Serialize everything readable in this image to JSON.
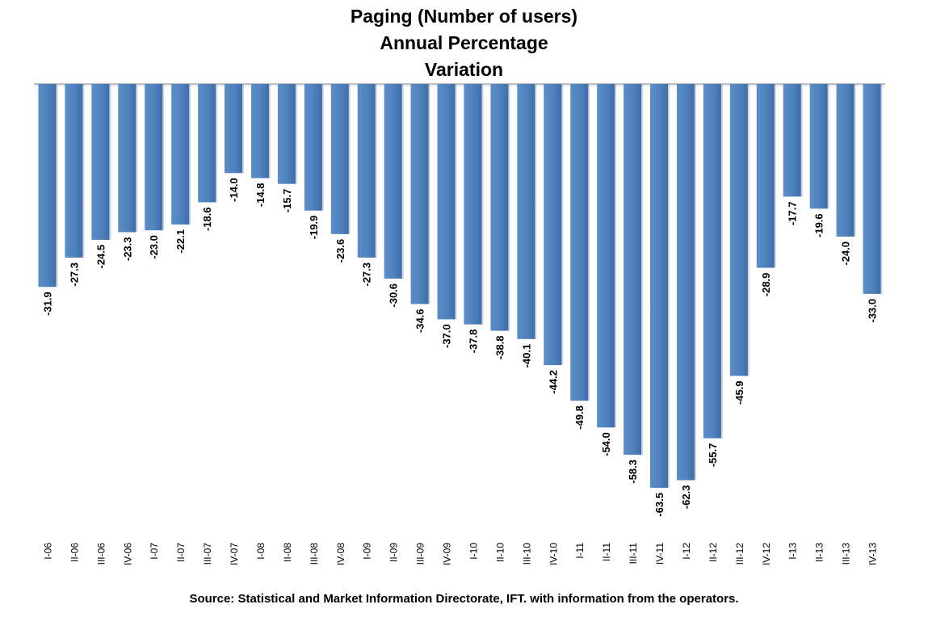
{
  "chart_data": {
    "type": "bar",
    "title_lines": [
      "Paging (Number of users)",
      "Annual Percentage",
      "Variation"
    ],
    "categories": [
      "I-06",
      "II-06",
      "III-06",
      "IV-06",
      "I-07",
      "II-07",
      "III-07",
      "IV-07",
      "I-08",
      "II-08",
      "III-08",
      "IV-08",
      "I-09",
      "II-09",
      "III-09",
      "IV-09",
      "I-10",
      "II-10",
      "III-10",
      "IV-10",
      "I-11",
      "II-11",
      "III-11",
      "IV-11",
      "I-12",
      "II-12",
      "III-12",
      "IV-12",
      "I-13",
      "II-13",
      "III-13",
      "IV-13"
    ],
    "values": [
      -31.9,
      -27.3,
      -24.5,
      -23.3,
      -23.0,
      -22.1,
      -18.6,
      -14.0,
      -14.8,
      -15.7,
      -19.9,
      -23.6,
      -27.3,
      -30.6,
      -34.6,
      -37.0,
      -37.8,
      -38.8,
      -40.1,
      -44.2,
      -49.8,
      -54.0,
      -58.3,
      -63.5,
      -62.3,
      -55.7,
      -45.9,
      -28.9,
      -17.7,
      -19.6,
      -24.0,
      -33.0
    ],
    "value_labels": [
      "-31.9",
      "-27.3",
      "-24.5",
      "-23.3",
      "-23.0",
      "-22.1",
      "-18.6",
      "-14.0",
      "-14.8",
      "-15.7",
      "-19.9",
      "-23.6",
      "-27.3",
      "-30.6",
      "-34.6",
      "-37.0",
      "-37.8",
      "-38.8",
      "-40.1",
      "-44.2",
      "-49.8",
      "-54.0",
      "-58.3",
      "-63.5",
      "-62.3",
      "-55.7",
      "-45.9",
      "-28.9",
      "-17.7",
      "-19.6",
      "-24.0",
      "-33.0"
    ],
    "ylim": [
      -70,
      0
    ],
    "bar_color": "#4F81BD",
    "bar_color_dark": "#3A6AA5",
    "grid": false,
    "legend": "none",
    "source": "Source: Statistical and Market Information Directorate, IFT. with information from the operators."
  }
}
